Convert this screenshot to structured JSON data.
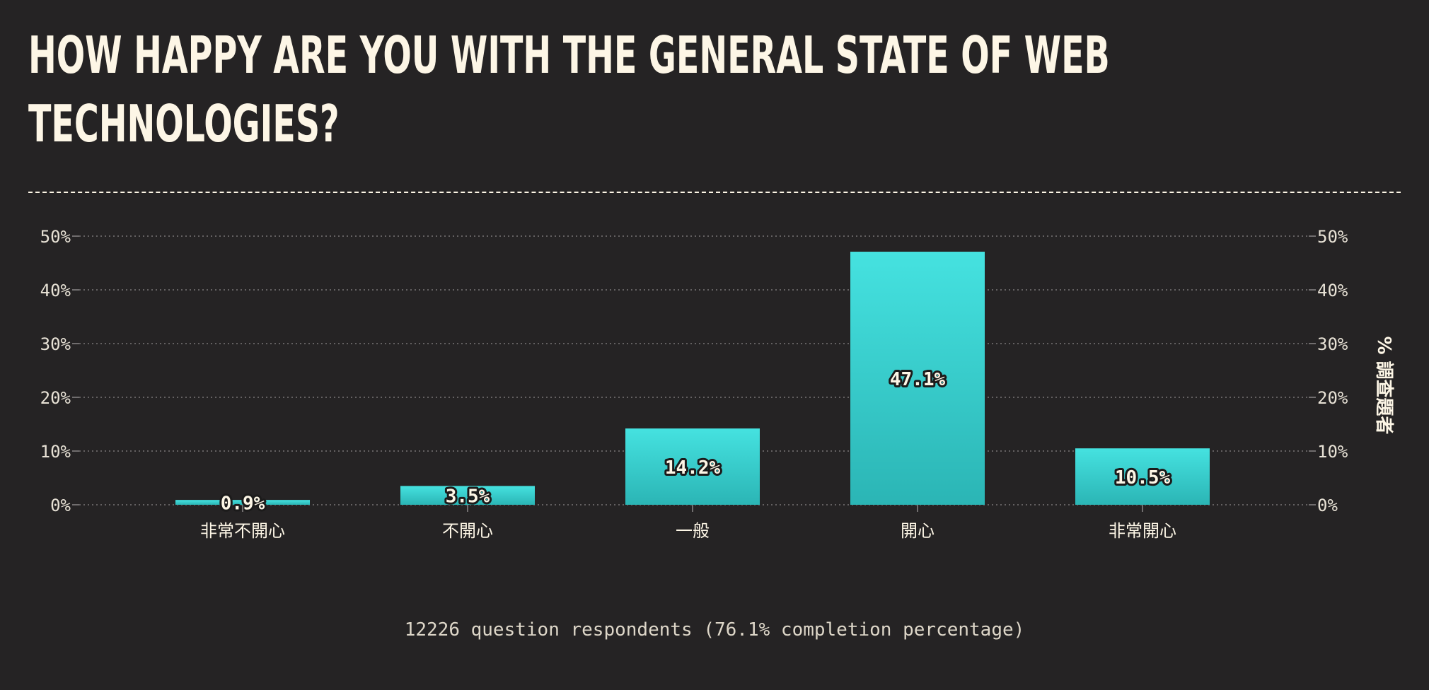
{
  "title": {
    "line1": "HOW HAPPY ARE YOU WITH THE GENERAL STATE OF WEB",
    "line2": "TECHNOLOGIES?"
  },
  "colors": {
    "background": "#252324",
    "bar_top": "#45e2e0",
    "bar_bottom": "#2bb5b5",
    "text": "#fdf6e6"
  },
  "chart_data": {
    "type": "bar",
    "categories": [
      "非常不開心",
      "不開心",
      "一般",
      "開心",
      "非常開心"
    ],
    "values": [
      0.9,
      3.5,
      14.2,
      47.1,
      10.5
    ],
    "value_labels": [
      "0.9%",
      "3.5%",
      "14.2%",
      "47.1%",
      "10.5%"
    ],
    "ylim": [
      0,
      50
    ],
    "yticks": [
      0,
      10,
      20,
      30,
      40,
      50
    ],
    "ytick_labels": [
      "0%",
      "10%",
      "20%",
      "30%",
      "40%",
      "50%"
    ],
    "y2label": "% 調查題者",
    "grid": true,
    "xlabel": "",
    "ylabel": ""
  },
  "footer": "12226 question respondents (76.1% completion percentage)"
}
